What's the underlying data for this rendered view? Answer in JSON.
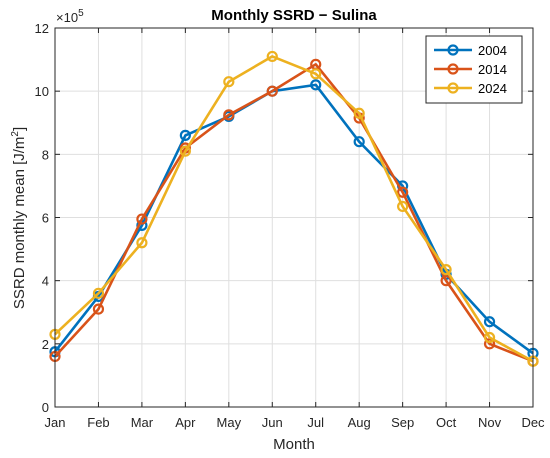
{
  "chart_data": {
    "type": "line",
    "title": "Monthly SSRD − Sulina",
    "xlabel": "Month",
    "ylabel_main": "SSRD monthly mean [J/m",
    "ylabel_sup": "2",
    "ylabel_end": "]",
    "y_exponent_base": "×10",
    "y_exponent_power": "5",
    "categories": [
      "Jan",
      "Feb",
      "Mar",
      "Apr",
      "May",
      "Jun",
      "Jul",
      "Aug",
      "Sep",
      "Oct",
      "Nov",
      "Dec"
    ],
    "yticks": [
      0,
      2,
      4,
      6,
      8,
      10,
      12
    ],
    "ylim": [
      0,
      12
    ],
    "y_scale_note": "values in units of 10^5 J/m^2",
    "grid": true,
    "legend_position": "top-right",
    "series": [
      {
        "name": "2004",
        "color": "#0072BD",
        "values": [
          1.75,
          3.5,
          5.75,
          8.6,
          9.2,
          10.0,
          10.2,
          8.4,
          7.0,
          4.2,
          2.7,
          1.7
        ]
      },
      {
        "name": "2014",
        "color": "#D95319",
        "values": [
          1.6,
          3.1,
          5.95,
          8.2,
          9.25,
          10.0,
          10.85,
          9.15,
          6.8,
          4.0,
          2.0,
          1.45
        ]
      },
      {
        "name": "2024",
        "color": "#EDB120",
        "values": [
          2.3,
          3.6,
          5.2,
          8.1,
          10.3,
          11.1,
          10.55,
          9.3,
          6.35,
          4.35,
          2.2,
          1.45
        ]
      }
    ]
  }
}
